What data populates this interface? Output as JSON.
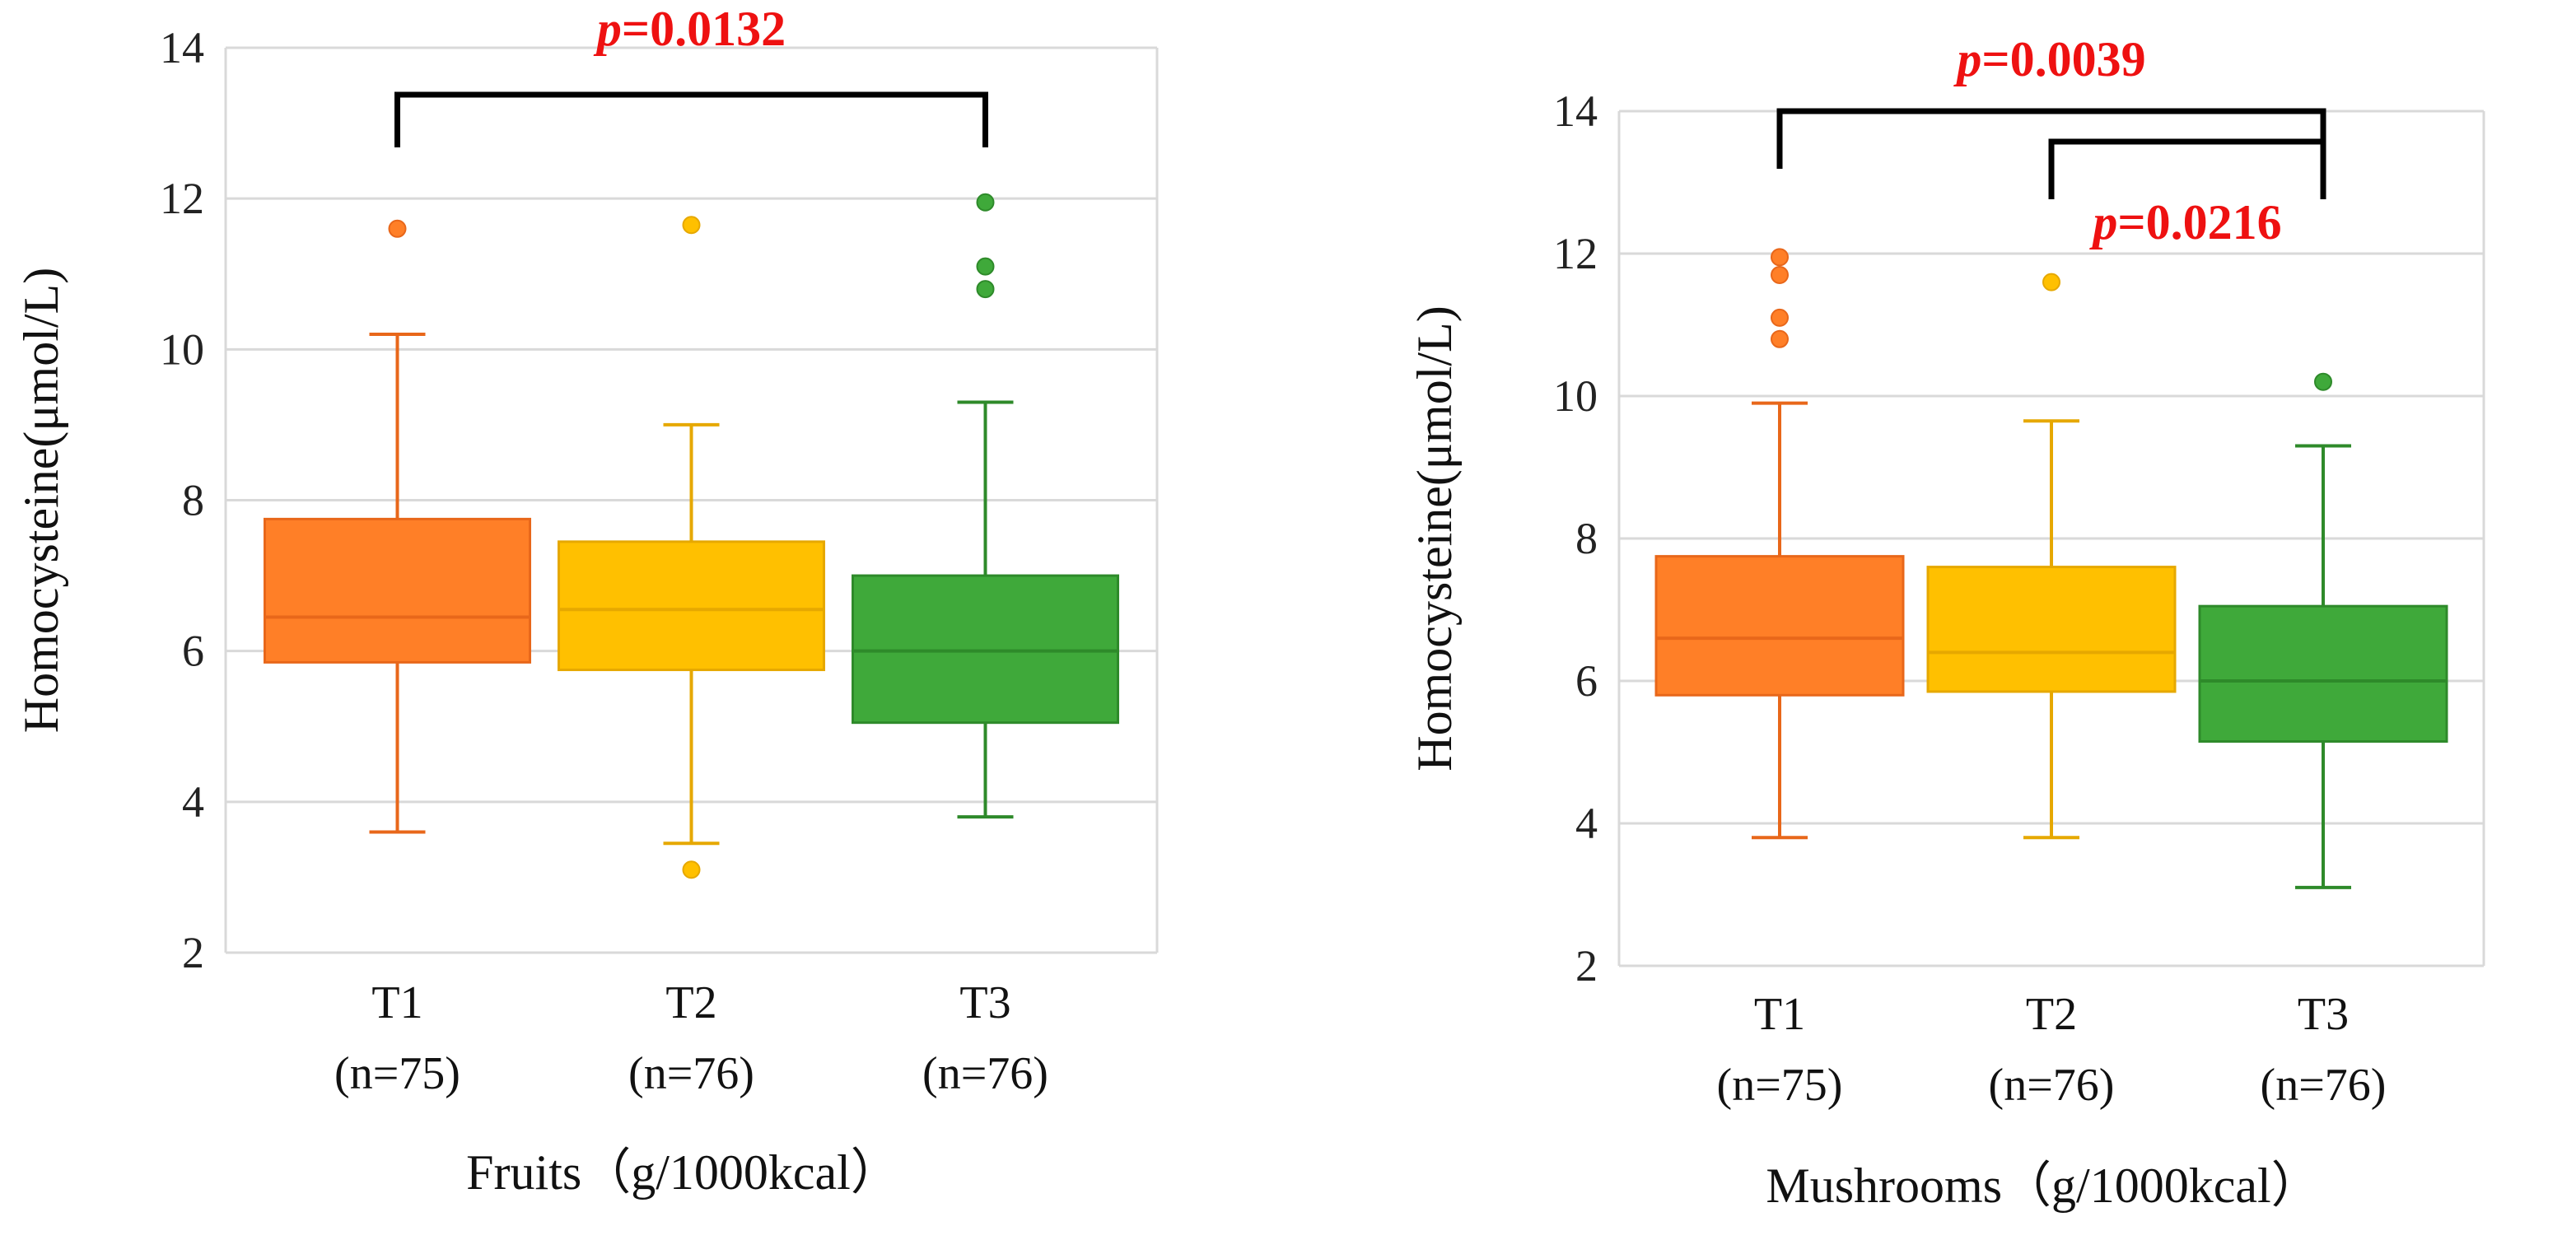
{
  "chart_data": [
    {
      "type": "box",
      "id": "fruits",
      "xlabel": "Fruits（g/1000kcal）",
      "ylabel": "Homocysteine(μmol/L)",
      "ylim": [
        2,
        14
      ],
      "yticks": [
        2,
        4,
        6,
        8,
        10,
        12,
        14
      ],
      "grid": true,
      "categories": [
        {
          "label": "T1",
          "n_label": "(n=75)"
        },
        {
          "label": "T2",
          "n_label": "(n=76)"
        },
        {
          "label": "T3",
          "n_label": "(n=76)"
        }
      ],
      "boxes": [
        {
          "category": "T1",
          "color": "#ff7f27",
          "stroke": "#e8671a",
          "whisker_low": 3.6,
          "q1": 5.85,
          "median": 6.45,
          "q3": 7.75,
          "whisker_high": 10.2,
          "outliers": [
            11.6
          ]
        },
        {
          "category": "T2",
          "color": "#ffc000",
          "stroke": "#e6a800",
          "whisker_low": 3.45,
          "q1": 5.75,
          "median": 6.55,
          "q3": 7.45,
          "whisker_high": 9.0,
          "outliers": [
            11.65,
            3.1
          ]
        },
        {
          "category": "T3",
          "color": "#3fa93a",
          "stroke": "#2e8a2a",
          "whisker_low": 3.8,
          "q1": 5.05,
          "median": 6.0,
          "q3": 7.0,
          "whisker_high": 9.3,
          "outliers": [
            11.95,
            11.1,
            10.8
          ]
        }
      ],
      "comparisons": [
        {
          "from": "T1",
          "to": "T3",
          "level": 1,
          "p_prefix": "p",
          "p_value": "=0.0132",
          "label_position": "above"
        }
      ]
    },
    {
      "type": "box",
      "id": "mushrooms",
      "xlabel": "Mushrooms（g/1000kcal）",
      "ylabel": "Homocysteine(μmol/L)",
      "ylim": [
        2,
        14
      ],
      "yticks": [
        2,
        4,
        6,
        8,
        10,
        12,
        14
      ],
      "grid": true,
      "categories": [
        {
          "label": "T1",
          "n_label": "(n=75)"
        },
        {
          "label": "T2",
          "n_label": "(n=76)"
        },
        {
          "label": "T3",
          "n_label": "(n=76)"
        }
      ],
      "boxes": [
        {
          "category": "T1",
          "color": "#ff7f27",
          "stroke": "#e8671a",
          "whisker_low": 3.8,
          "q1": 5.8,
          "median": 6.6,
          "q3": 7.75,
          "whisker_high": 9.9,
          "outliers": [
            11.95,
            11.7,
            11.1,
            10.8
          ]
        },
        {
          "category": "T2",
          "color": "#ffc000",
          "stroke": "#e6a800",
          "whisker_low": 3.8,
          "q1": 5.85,
          "median": 6.4,
          "q3": 7.6,
          "whisker_high": 9.65,
          "outliers": [
            11.6
          ]
        },
        {
          "category": "T3",
          "color": "#3fa93a",
          "stroke": "#2e8a2a",
          "whisker_low": 3.1,
          "q1": 5.15,
          "median": 6.0,
          "q3": 7.05,
          "whisker_high": 9.3,
          "outliers": [
            10.2
          ]
        }
      ],
      "comparisons": [
        {
          "from": "T1",
          "to": "T3",
          "level": 2,
          "p_prefix": "p",
          "p_value": "=0.0039",
          "label_position": "above"
        },
        {
          "from": "T2",
          "to": "T3",
          "level": 1,
          "p_prefix": "p",
          "p_value": "=0.0216",
          "label_position": "below"
        }
      ]
    }
  ]
}
